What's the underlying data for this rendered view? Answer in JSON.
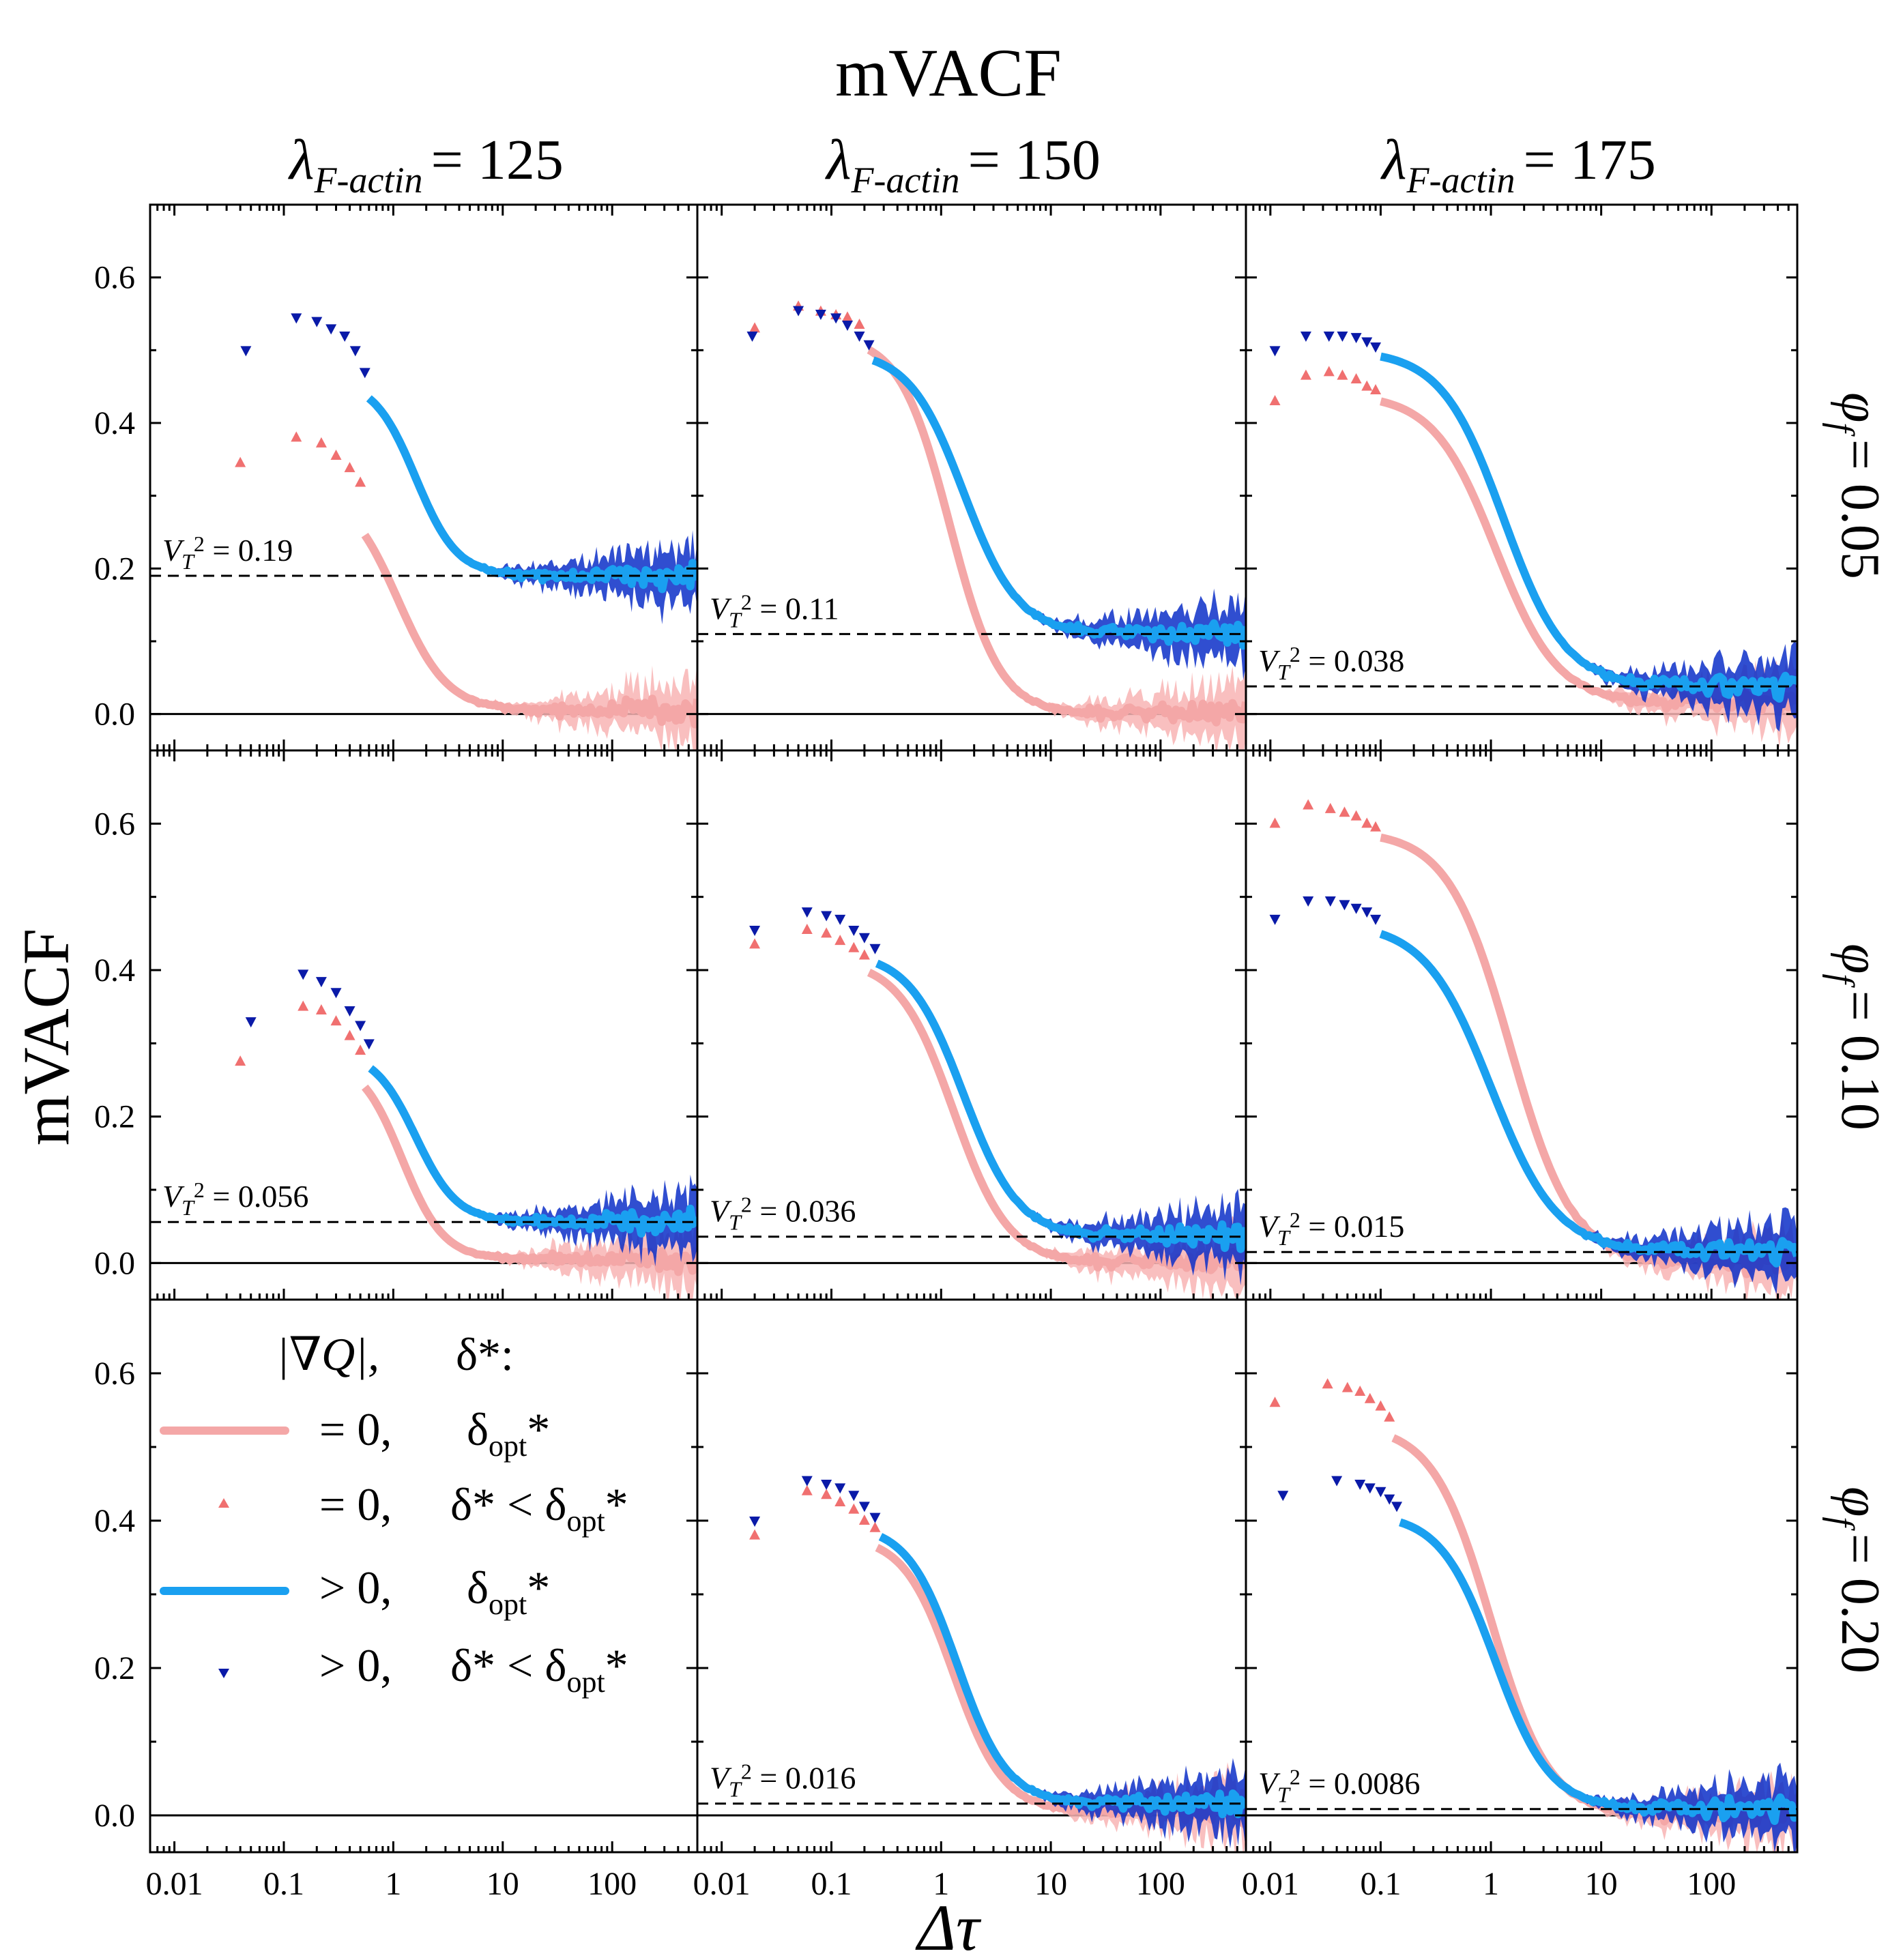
{
  "title": "mVACF",
  "ylabel": "mVACF",
  "xlabel": "Δτ",
  "column_labels": [
    {
      "sym": "λ",
      "sub": "F-actin",
      "value": "= 125"
    },
    {
      "sym": "λ",
      "sub": "F-actin",
      "value": "= 150"
    },
    {
      "sym": "λ",
      "sub": "F-actin",
      "value": "= 175"
    }
  ],
  "row_labels": [
    {
      "sym": "φ",
      "sub": "f",
      "value": "= 0.05"
    },
    {
      "sym": "φ",
      "sub": "f",
      "value": "= 0.10"
    },
    {
      "sym": "φ",
      "sub": "f",
      "value": "= 0.20"
    }
  ],
  "legend": {
    "header_gradq": "|∇Q|,",
    "header_delta": "δ*:",
    "rows": [
      {
        "kind": "pink-line",
        "cond": "= 0,",
        "delta": "δopt*",
        "delta_color": "#e8191c"
      },
      {
        "kind": "pink-tri",
        "cond": "= 0,",
        "delta": "δ* < δopt*",
        "delta_color": "#000000"
      },
      {
        "kind": "blue-line",
        "cond": "> 0,",
        "delta": "δopt*",
        "delta_color": "#1b24e6"
      },
      {
        "kind": "blue-tri",
        "cond": "> 0,",
        "delta": "δ* < δopt*",
        "delta_color": "#000000"
      }
    ]
  },
  "colors": {
    "pink_line": "#f4a7a7",
    "pink_fill": "#f8b4b4",
    "pink_marker": "#f07070",
    "blue_line": "#1aa0f0",
    "blue_fill": "#0c2fc8",
    "blue_marker": "#0a1aa8"
  },
  "chart_data": {
    "type": "scatter",
    "title": "mVACF",
    "xlabel": "Δτ",
    "ylabel": "mVACF",
    "xscale": "log",
    "xlim": [
      0.006,
      600
    ],
    "ylim": [
      -0.05,
      0.7
    ],
    "yticks": [
      0.0,
      0.2,
      0.4,
      0.6
    ],
    "ytick_labels": [
      "0.0",
      "0.2",
      "0.4",
      "0.6"
    ],
    "xticks": [
      0.01,
      0.1,
      1,
      10,
      100
    ],
    "xtick_labels": [
      "0.01",
      "0.1",
      "1",
      "10",
      "100"
    ],
    "panels": [
      {
        "row": 0,
        "col": 0,
        "vt2": 0.19,
        "vt_label": "0.19",
        "pink_pts": [
          [
            0.04,
            0.345
          ],
          [
            0.13,
            0.38
          ],
          [
            0.22,
            0.372
          ],
          [
            0.3,
            0.355
          ],
          [
            0.4,
            0.338
          ],
          [
            0.5,
            0.318
          ]
        ],
        "pink_curve": {
          "y0": 0.31,
          "mid": 1.1,
          "w": 0.5,
          "plateau": 0.005,
          "start": 0.55
        },
        "blue_pts": [
          [
            0.045,
            0.5
          ],
          [
            0.13,
            0.545
          ],
          [
            0.2,
            0.54
          ],
          [
            0.27,
            0.53
          ],
          [
            0.36,
            0.52
          ],
          [
            0.45,
            0.5
          ],
          [
            0.55,
            0.47
          ]
        ],
        "blue_curve": {
          "y0": 0.46,
          "mid": 1.6,
          "w": 0.42,
          "plateau": 0.19,
          "start": 0.6
        }
      },
      {
        "row": 0,
        "col": 1,
        "vt2": 0.11,
        "vt_label": "0.11",
        "pink_pts": [
          [
            0.02,
            0.53
          ],
          [
            0.05,
            0.56
          ],
          [
            0.08,
            0.553
          ],
          [
            0.11,
            0.548
          ],
          [
            0.14,
            0.545
          ],
          [
            0.18,
            0.535
          ]
        ],
        "pink_curve": {
          "y0": 0.52,
          "mid": 1.2,
          "w": 0.5,
          "plateau": 0.0,
          "start": 0.22
        },
        "blue_pts": [
          [
            0.019,
            0.52
          ],
          [
            0.05,
            0.555
          ],
          [
            0.08,
            0.55
          ],
          [
            0.11,
            0.545
          ],
          [
            0.14,
            0.535
          ],
          [
            0.18,
            0.52
          ],
          [
            0.22,
            0.508
          ]
        ],
        "blue_curve": {
          "y0": 0.5,
          "mid": 1.6,
          "w": 0.55,
          "plateau": 0.11,
          "start": 0.24
        }
      },
      {
        "row": 0,
        "col": 2,
        "vt2": 0.038,
        "vt_label": "0.038",
        "pink_pts": [
          [
            0.011,
            0.43
          ],
          [
            0.021,
            0.465
          ],
          [
            0.034,
            0.47
          ],
          [
            0.045,
            0.465
          ],
          [
            0.06,
            0.46
          ],
          [
            0.075,
            0.45
          ],
          [
            0.09,
            0.445
          ]
        ],
        "pink_curve": {
          "y0": 0.44,
          "mid": 1.1,
          "w": 0.62,
          "plateau": 0.015,
          "start": 0.1
        },
        "blue_pts": [
          [
            0.011,
            0.5
          ],
          [
            0.021,
            0.52
          ],
          [
            0.034,
            0.52
          ],
          [
            0.045,
            0.52
          ],
          [
            0.06,
            0.518
          ],
          [
            0.075,
            0.512
          ],
          [
            0.09,
            0.505
          ]
        ],
        "blue_curve": {
          "y0": 0.5,
          "mid": 1.3,
          "w": 0.62,
          "plateau": 0.038,
          "start": 0.1
        }
      },
      {
        "row": 1,
        "col": 0,
        "vt2": 0.056,
        "vt_label": "0.056",
        "pink_pts": [
          [
            0.04,
            0.275
          ],
          [
            0.15,
            0.35
          ],
          [
            0.22,
            0.345
          ],
          [
            0.3,
            0.33
          ],
          [
            0.4,
            0.31
          ],
          [
            0.5,
            0.29
          ]
        ],
        "pink_curve": {
          "y0": 0.28,
          "mid": 1.2,
          "w": 0.42,
          "plateau": 0.005,
          "start": 0.55
        },
        "blue_pts": [
          [
            0.05,
            0.33
          ],
          [
            0.15,
            0.395
          ],
          [
            0.22,
            0.385
          ],
          [
            0.3,
            0.37
          ],
          [
            0.4,
            0.345
          ],
          [
            0.5,
            0.325
          ],
          [
            0.6,
            0.3
          ]
        ],
        "blue_curve": {
          "y0": 0.29,
          "mid": 1.6,
          "w": 0.42,
          "plateau": 0.056,
          "start": 0.62
        }
      },
      {
        "row": 1,
        "col": 1,
        "vt2": 0.036,
        "vt_label": "0.036",
        "pink_pts": [
          [
            0.02,
            0.435
          ],
          [
            0.06,
            0.455
          ],
          [
            0.09,
            0.45
          ],
          [
            0.12,
            0.44
          ],
          [
            0.16,
            0.43
          ],
          [
            0.2,
            0.42
          ]
        ],
        "pink_curve": {
          "y0": 0.415,
          "mid": 1.3,
          "w": 0.55,
          "plateau": 0.0,
          "start": 0.22
        },
        "blue_pts": [
          [
            0.02,
            0.455
          ],
          [
            0.06,
            0.48
          ],
          [
            0.09,
            0.475
          ],
          [
            0.12,
            0.47
          ],
          [
            0.16,
            0.455
          ],
          [
            0.2,
            0.445
          ],
          [
            0.25,
            0.43
          ]
        ],
        "blue_curve": {
          "y0": 0.425,
          "mid": 1.6,
          "w": 0.55,
          "plateau": 0.036,
          "start": 0.26
        }
      },
      {
        "row": 1,
        "col": 2,
        "vt2": 0.015,
        "vt_label": "0.015",
        "pink_pts": [
          [
            0.011,
            0.6
          ],
          [
            0.022,
            0.625
          ],
          [
            0.035,
            0.62
          ],
          [
            0.047,
            0.615
          ],
          [
            0.06,
            0.61
          ],
          [
            0.075,
            0.6
          ],
          [
            0.09,
            0.595
          ]
        ],
        "pink_curve": {
          "y0": 0.59,
          "mid": 1.5,
          "w": 0.62,
          "plateau": 0.0,
          "start": 0.1
        },
        "blue_pts": [
          [
            0.011,
            0.47
          ],
          [
            0.022,
            0.495
          ],
          [
            0.035,
            0.495
          ],
          [
            0.047,
            0.49
          ],
          [
            0.06,
            0.485
          ],
          [
            0.075,
            0.48
          ],
          [
            0.09,
            0.47
          ]
        ],
        "blue_curve": {
          "y0": 0.465,
          "mid": 1.0,
          "w": 0.66,
          "plateau": 0.015,
          "start": 0.1
        }
      },
      {
        "row": 2,
        "col": 0,
        "vt2": null,
        "vt_label": "",
        "pink_pts": [],
        "pink_curve": null,
        "blue_pts": [],
        "blue_curve": null
      },
      {
        "row": 2,
        "col": 1,
        "vt2": 0.016,
        "vt_label": "0.016",
        "pink_pts": [
          [
            0.02,
            0.38
          ],
          [
            0.06,
            0.44
          ],
          [
            0.09,
            0.435
          ],
          [
            0.12,
            0.425
          ],
          [
            0.16,
            0.415
          ],
          [
            0.2,
            0.4
          ],
          [
            0.25,
            0.39
          ]
        ],
        "pink_curve": {
          "y0": 0.38,
          "mid": 1.3,
          "w": 0.5,
          "plateau": 0.005,
          "start": 0.26
        },
        "blue_pts": [
          [
            0.02,
            0.4
          ],
          [
            0.06,
            0.455
          ],
          [
            0.09,
            0.45
          ],
          [
            0.12,
            0.445
          ],
          [
            0.16,
            0.435
          ],
          [
            0.2,
            0.42
          ],
          [
            0.25,
            0.405
          ]
        ],
        "blue_curve": {
          "y0": 0.395,
          "mid": 1.4,
          "w": 0.5,
          "plateau": 0.016,
          "start": 0.28
        }
      },
      {
        "row": 2,
        "col": 2,
        "vt2": 0.0086,
        "vt_label": "0.0086",
        "pink_pts": [
          [
            0.011,
            0.56
          ],
          [
            0.033,
            0.585
          ],
          [
            0.05,
            0.58
          ],
          [
            0.065,
            0.575
          ],
          [
            0.08,
            0.565
          ],
          [
            0.1,
            0.555
          ],
          [
            0.12,
            0.54
          ]
        ],
        "pink_curve": {
          "y0": 0.53,
          "mid": 1.0,
          "w": 0.58,
          "plateau": 0.0,
          "start": 0.13
        },
        "blue_pts": [
          [
            0.013,
            0.435
          ],
          [
            0.04,
            0.455
          ],
          [
            0.065,
            0.45
          ],
          [
            0.08,
            0.445
          ],
          [
            0.1,
            0.44
          ],
          [
            0.12,
            0.43
          ],
          [
            0.14,
            0.42
          ]
        ],
        "blue_curve": {
          "y0": 0.41,
          "mid": 1.1,
          "w": 0.55,
          "plateau": 0.0086,
          "start": 0.15
        }
      }
    ]
  }
}
